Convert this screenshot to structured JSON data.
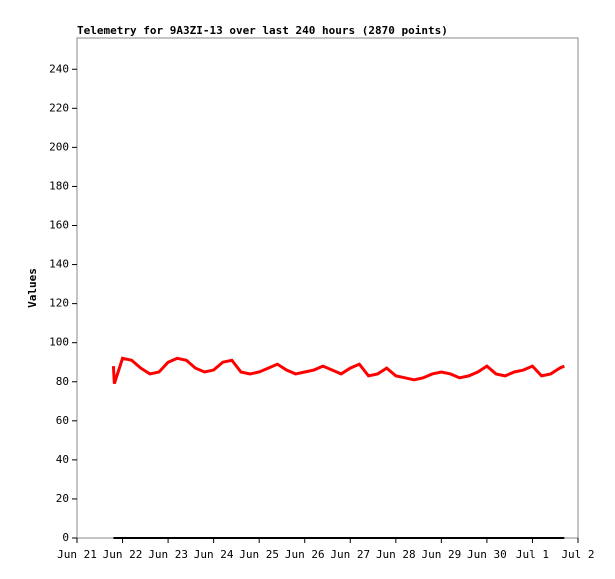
{
  "chart_data": {
    "type": "line",
    "title": "Telemetry for 9A3ZI-13 over last 240 hours (2870 points)",
    "y_label": "Values",
    "x": [
      0.8,
      0.82,
      1.0,
      1.2,
      1.4,
      1.6,
      1.8,
      2.0,
      2.2,
      2.4,
      2.6,
      2.8,
      3.0,
      3.2,
      3.4,
      3.6,
      3.8,
      4.0,
      4.2,
      4.4,
      4.6,
      4.8,
      5.0,
      5.2,
      5.4,
      5.6,
      5.8,
      6.0,
      6.2,
      6.4,
      6.6,
      6.8,
      7.0,
      7.2,
      7.4,
      7.6,
      7.8,
      8.0,
      8.2,
      8.4,
      8.6,
      8.8,
      9.0,
      9.2,
      9.4,
      9.6,
      9.8,
      10.0,
      10.2,
      10.4,
      10.6,
      10.7
    ],
    "series": [
      {
        "color": "#ff0000",
        "values": [
          88,
          79,
          92,
          91,
          87,
          84,
          85,
          90,
          92,
          91,
          87,
          85,
          86,
          90,
          91,
          85,
          84,
          85,
          87,
          89,
          86,
          84,
          85,
          86,
          88,
          86,
          84,
          87,
          89,
          83,
          84,
          87,
          83,
          82,
          81,
          82,
          84,
          85,
          84,
          82,
          83,
          85,
          88,
          84,
          83,
          85,
          86,
          88,
          83,
          84,
          87,
          88
        ]
      },
      {
        "color": "#000000",
        "values": [
          0,
          0,
          0,
          0,
          0,
          0,
          0,
          0,
          0,
          0,
          0,
          0,
          0,
          0,
          0,
          0,
          0,
          0,
          0,
          0,
          0,
          0,
          0,
          0,
          0,
          0,
          0,
          0,
          0,
          0,
          0,
          0,
          0,
          0,
          0,
          0,
          0,
          0,
          0,
          0,
          0,
          0,
          0,
          0,
          0,
          0,
          0,
          0,
          0,
          0,
          0,
          0
        ]
      }
    ],
    "xlim": [
      0,
      11
    ],
    "xticks": [
      {
        "value": 0,
        "label": "Jun 21"
      },
      {
        "value": 1,
        "label": "Jun 22"
      },
      {
        "value": 2,
        "label": "Jun 23"
      },
      {
        "value": 3,
        "label": "Jun 24"
      },
      {
        "value": 4,
        "label": "Jun 25"
      },
      {
        "value": 5,
        "label": "Jun 26"
      },
      {
        "value": 6,
        "label": "Jun 27"
      },
      {
        "value": 7,
        "label": "Jun 28"
      },
      {
        "value": 8,
        "label": "Jun 29"
      },
      {
        "value": 9,
        "label": "Jun 30"
      },
      {
        "value": 10,
        "label": "Jul 1"
      },
      {
        "value": 11,
        "label": "Jul 2"
      }
    ],
    "ylim": [
      0,
      256
    ],
    "yticks": [
      0,
      20,
      40,
      60,
      80,
      100,
      120,
      140,
      160,
      180,
      200,
      220,
      240
    ]
  }
}
